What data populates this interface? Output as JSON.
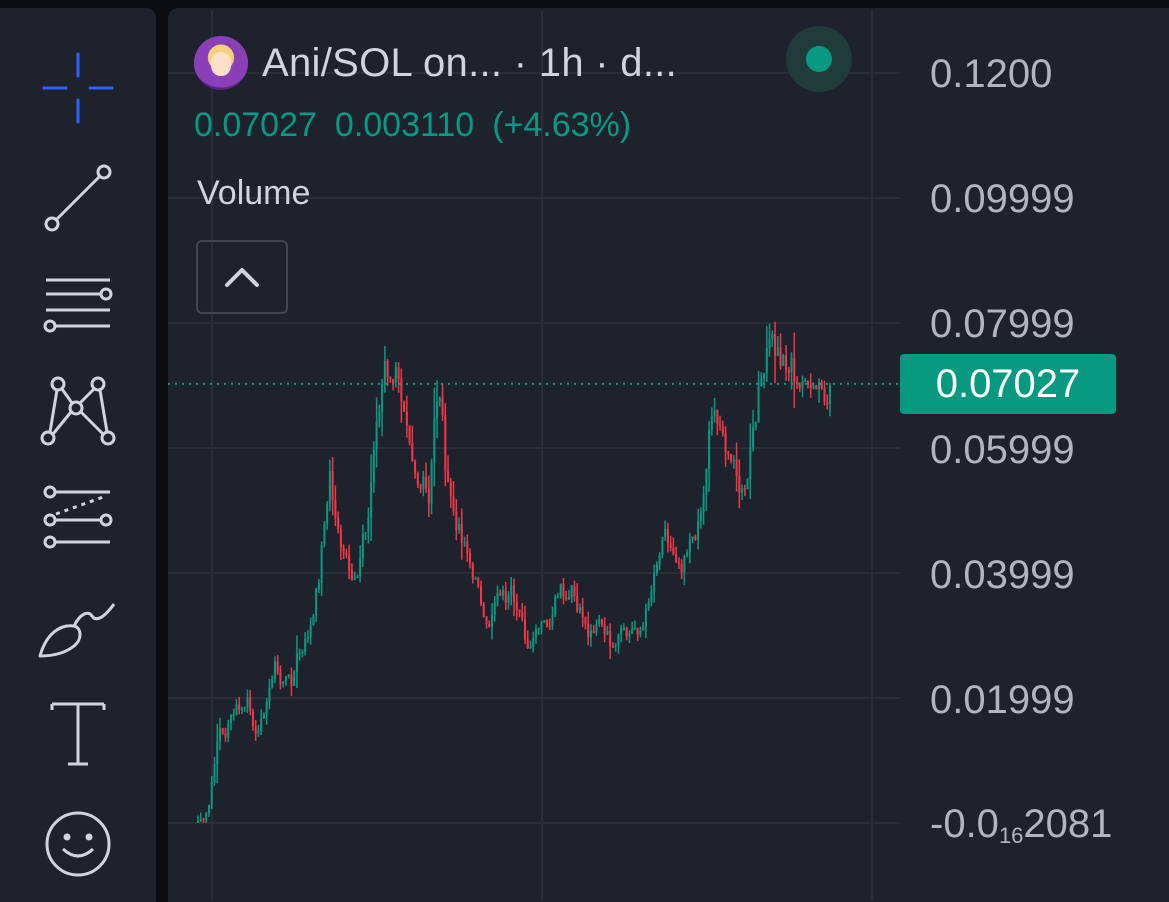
{
  "toolbar": {
    "tools": [
      {
        "name": "crosshair",
        "icon": "crosshair-icon",
        "color": "#2962ff"
      },
      {
        "name": "trend-line",
        "icon": "trend-line-icon"
      },
      {
        "name": "horizontal-lines",
        "icon": "horizontal-lines-icon"
      },
      {
        "name": "pattern",
        "icon": "xabcd-pattern-icon"
      },
      {
        "name": "fib",
        "icon": "fib-retracement-icon"
      },
      {
        "name": "brush",
        "icon": "brush-icon"
      },
      {
        "name": "text",
        "icon": "text-icon"
      },
      {
        "name": "emoji",
        "icon": "smiley-icon"
      }
    ]
  },
  "header": {
    "symbol": "Ani/SOL on... · 1h · d...",
    "avatar_icon": "token-avatar",
    "status_color": "#089981",
    "price": "0.07027",
    "change": "0.003110",
    "change_pct": "(+4.63%)"
  },
  "volume": {
    "label": "Volume",
    "collapse_icon": "chevron-up-icon"
  },
  "price_axis": {
    "labels": [
      "0.1200",
      "0.09999",
      "0.07999",
      "0.05999",
      "0.03999",
      "0.01999"
    ],
    "bottom_label_prefix": "-0.0",
    "bottom_label_sub": "16",
    "bottom_label_suffix": "2081",
    "last_price": "0.07027"
  },
  "colors": {
    "up": "#089981",
    "down": "#f23645",
    "background": "#1e222d",
    "grid": "#2a2e39",
    "text": "#b2b5be"
  },
  "chart_data": {
    "type": "candlestick",
    "y_axis_ticks": [
      0.12,
      0.09999,
      0.07999,
      0.05999,
      0.03999,
      0.01999
    ],
    "last_price": 0.07027,
    "close_path": [
      0.0,
      0.001,
      0.003,
      0.01,
      0.015,
      0.014,
      0.017,
      0.019,
      0.018,
      0.02,
      0.016,
      0.014,
      0.018,
      0.021,
      0.026,
      0.022,
      0.024,
      0.022,
      0.027,
      0.028,
      0.03,
      0.034,
      0.039,
      0.048,
      0.056,
      0.048,
      0.045,
      0.043,
      0.04,
      0.039,
      0.045,
      0.049,
      0.06,
      0.066,
      0.075,
      0.07,
      0.074,
      0.066,
      0.062,
      0.057,
      0.054,
      0.056,
      0.052,
      0.064,
      0.069,
      0.058,
      0.052,
      0.048,
      0.045,
      0.043,
      0.04,
      0.037,
      0.034,
      0.031,
      0.035,
      0.037,
      0.036,
      0.039,
      0.034,
      0.032,
      0.028,
      0.03,
      0.032,
      0.033,
      0.031,
      0.037,
      0.038,
      0.036,
      0.038,
      0.035,
      0.033,
      0.03,
      0.03,
      0.033,
      0.031,
      0.029,
      0.029,
      0.032,
      0.03,
      0.031,
      0.03,
      0.032,
      0.035,
      0.039,
      0.043,
      0.046,
      0.044,
      0.041,
      0.04,
      0.043,
      0.046,
      0.047,
      0.052,
      0.062,
      0.066,
      0.062,
      0.061,
      0.058,
      0.055,
      0.053,
      0.056,
      0.064,
      0.068,
      0.074,
      0.079,
      0.076,
      0.074,
      0.072,
      0.073,
      0.071,
      0.069,
      0.072,
      0.07,
      0.071,
      0.068,
      0.07
    ]
  }
}
